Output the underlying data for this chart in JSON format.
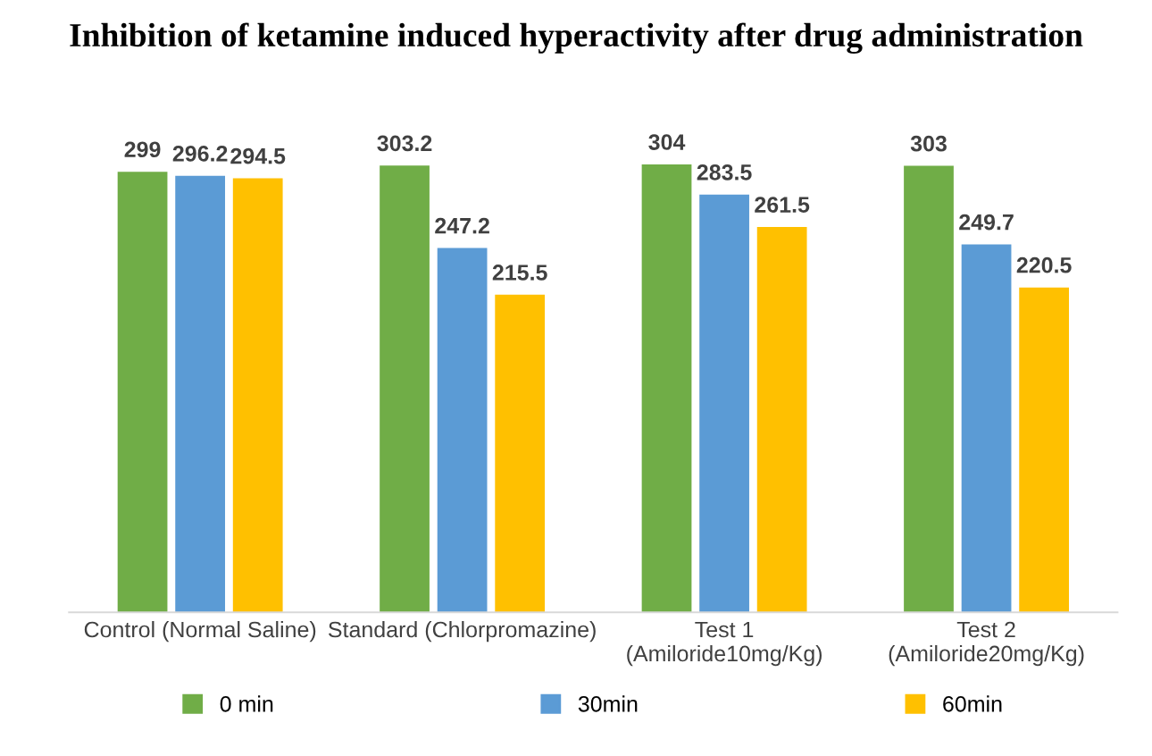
{
  "chart_data": {
    "type": "bar",
    "title": "Inhibition of ketamine induced hyperactivity after drug administration",
    "categories": [
      "Control (Normal Saline)",
      "Standard (Chlorpromazine)",
      "Test 1\n(Amiloride10mg/Kg)",
      "Test 2\n(Amiloride20mg/Kg)"
    ],
    "series": [
      {
        "name": "0 min",
        "color": "#70ad47",
        "values": [
          299,
          303.2,
          304,
          303
        ]
      },
      {
        "name": "30min",
        "color": "#5b9bd5",
        "values": [
          296.2,
          247.2,
          283.5,
          249.7
        ]
      },
      {
        "name": "60min",
        "color": "#ffc000",
        "values": [
          294.5,
          215.5,
          261.5,
          220.5
        ]
      }
    ],
    "data_labels": true,
    "legend": "bottom",
    "grid": false
  }
}
